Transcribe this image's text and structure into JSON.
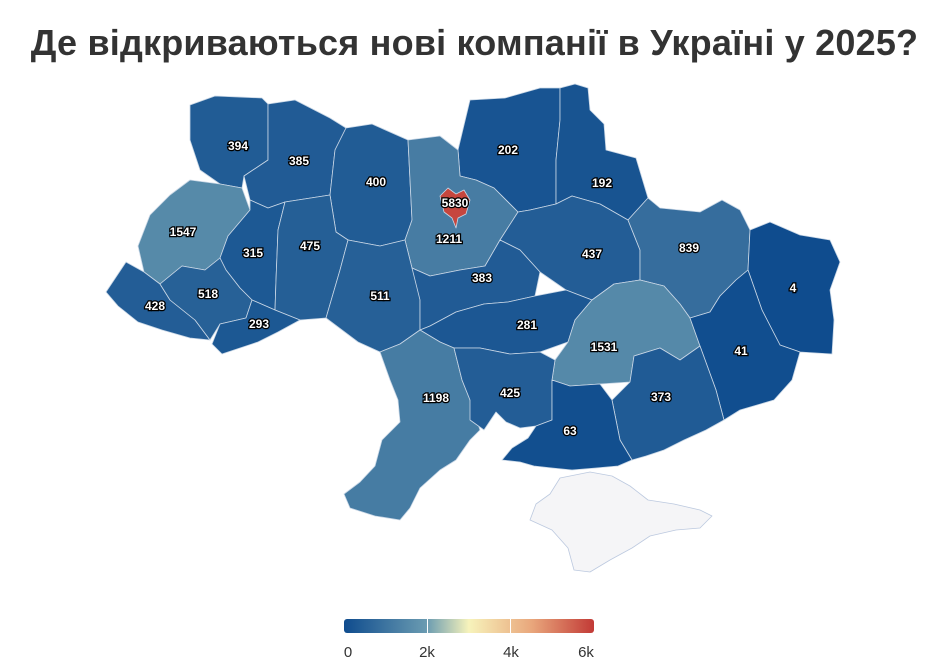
{
  "title": "Де відкриваються нові компанії в Україні у 2025?",
  "legend": {
    "min": 0,
    "max": 6000,
    "labels": [
      "0",
      "2k",
      "4k",
      "6k"
    ],
    "colors": [
      "#0f4c8e",
      "#6a9bb1",
      "#f7f3bb",
      "#e9a77c",
      "#c23a36"
    ]
  },
  "regions": [
    {
      "id": "volyn",
      "value": "394"
    },
    {
      "id": "rivne",
      "value": "385"
    },
    {
      "id": "zhytomyr",
      "value": "400"
    },
    {
      "id": "chernihiv",
      "value": "202"
    },
    {
      "id": "sumy",
      "value": "192"
    },
    {
      "id": "kyiv-city",
      "value": "5830"
    },
    {
      "id": "kyiv-oblast",
      "value": "1211"
    },
    {
      "id": "lviv",
      "value": "1547"
    },
    {
      "id": "ternopil",
      "value": "315"
    },
    {
      "id": "khmelnytskyi",
      "value": "475"
    },
    {
      "id": "poltava",
      "value": "437"
    },
    {
      "id": "kharkiv",
      "value": "839"
    },
    {
      "id": "luhansk",
      "value": "4"
    },
    {
      "id": "zakarpattia",
      "value": "428"
    },
    {
      "id": "ivano-frankivsk",
      "value": "518"
    },
    {
      "id": "chernivtsi",
      "value": "293"
    },
    {
      "id": "vinnytsia",
      "value": "511"
    },
    {
      "id": "cherkasy",
      "value": "383"
    },
    {
      "id": "kirovohrad",
      "value": "281"
    },
    {
      "id": "dnipropetrovsk",
      "value": "1531"
    },
    {
      "id": "donetsk",
      "value": "41"
    },
    {
      "id": "odesa",
      "value": "1198"
    },
    {
      "id": "mykolaiv",
      "value": "425"
    },
    {
      "id": "zaporizhzhia",
      "value": "373"
    },
    {
      "id": "kherson",
      "value": "63"
    },
    {
      "id": "crimea",
      "value": ""
    }
  ]
}
